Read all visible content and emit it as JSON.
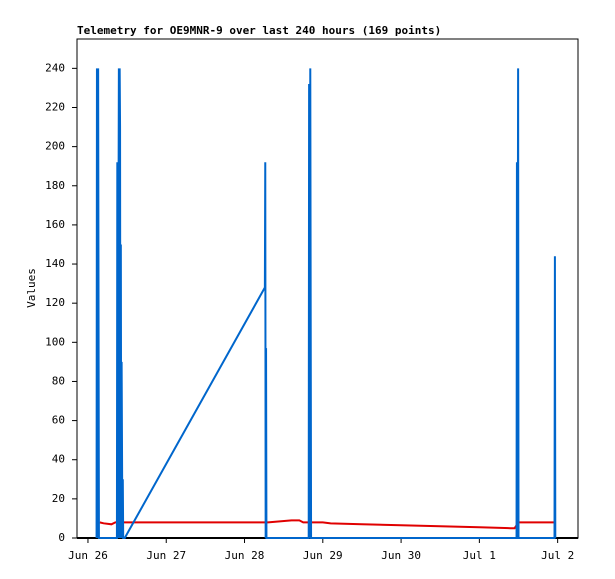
{
  "chart_data": {
    "type": "line",
    "title": "Telemetry for OE9MNR-9 over last 240 hours (169 points)",
    "y_label": "Values",
    "xlim": [
      -0.14,
      6.26
    ],
    "ylim": [
      0,
      255
    ],
    "yticks": [
      0,
      20,
      40,
      60,
      80,
      100,
      120,
      140,
      160,
      180,
      200,
      220,
      240
    ],
    "xticks": [
      {
        "value": 0,
        "label": "Jun 26"
      },
      {
        "value": 1,
        "label": "Jun 27"
      },
      {
        "value": 2,
        "label": "Jun 28"
      },
      {
        "value": 3,
        "label": "Jun 29"
      },
      {
        "value": 4,
        "label": "Jun 30"
      },
      {
        "value": 5,
        "label": "Jul 1"
      },
      {
        "value": 6,
        "label": "Jul 2"
      }
    ],
    "series": [
      {
        "color": "#e00000",
        "x": [
          0.15,
          0.2,
          0.3,
          0.35,
          0.4,
          1.0,
          2.0,
          2.3,
          2.6,
          2.7,
          2.75,
          3.0,
          3.1,
          3.5,
          4.0,
          4.5,
          5.0,
          5.4,
          5.45,
          5.5,
          5.96
        ],
        "values": [
          8,
          7.5,
          7,
          8,
          8,
          8,
          8,
          8,
          9,
          9,
          8,
          8,
          7.5,
          7,
          6.5,
          6,
          5.5,
          5,
          5,
          8,
          8
        ]
      },
      {
        "color": "#0066cc",
        "x": [
          0.11,
          0.115,
          0.125,
          0.13,
          0.14,
          0.37,
          0.375,
          0.38,
          0.395,
          0.4,
          0.405,
          0.41,
          0.415,
          0.42,
          0.425,
          0.43,
          0.44,
          0.445,
          0.45,
          0.47,
          2.26,
          2.265,
          2.27,
          2.275,
          2.28,
          2.82,
          2.825,
          2.83,
          2.84,
          2.85,
          5.475,
          5.48,
          5.485,
          5.495,
          5.5,
          5.96,
          5.965,
          5.97
        ],
        "values": [
          0,
          240,
          0,
          240,
          0,
          0,
          192,
          0,
          240,
          0,
          240,
          210,
          0,
          150,
          0,
          90,
          0,
          30,
          0,
          0,
          128,
          192,
          0,
          97,
          0,
          0,
          232,
          0,
          240,
          0,
          0,
          192,
          0,
          240,
          0,
          0,
          144,
          0
        ]
      }
    ]
  }
}
